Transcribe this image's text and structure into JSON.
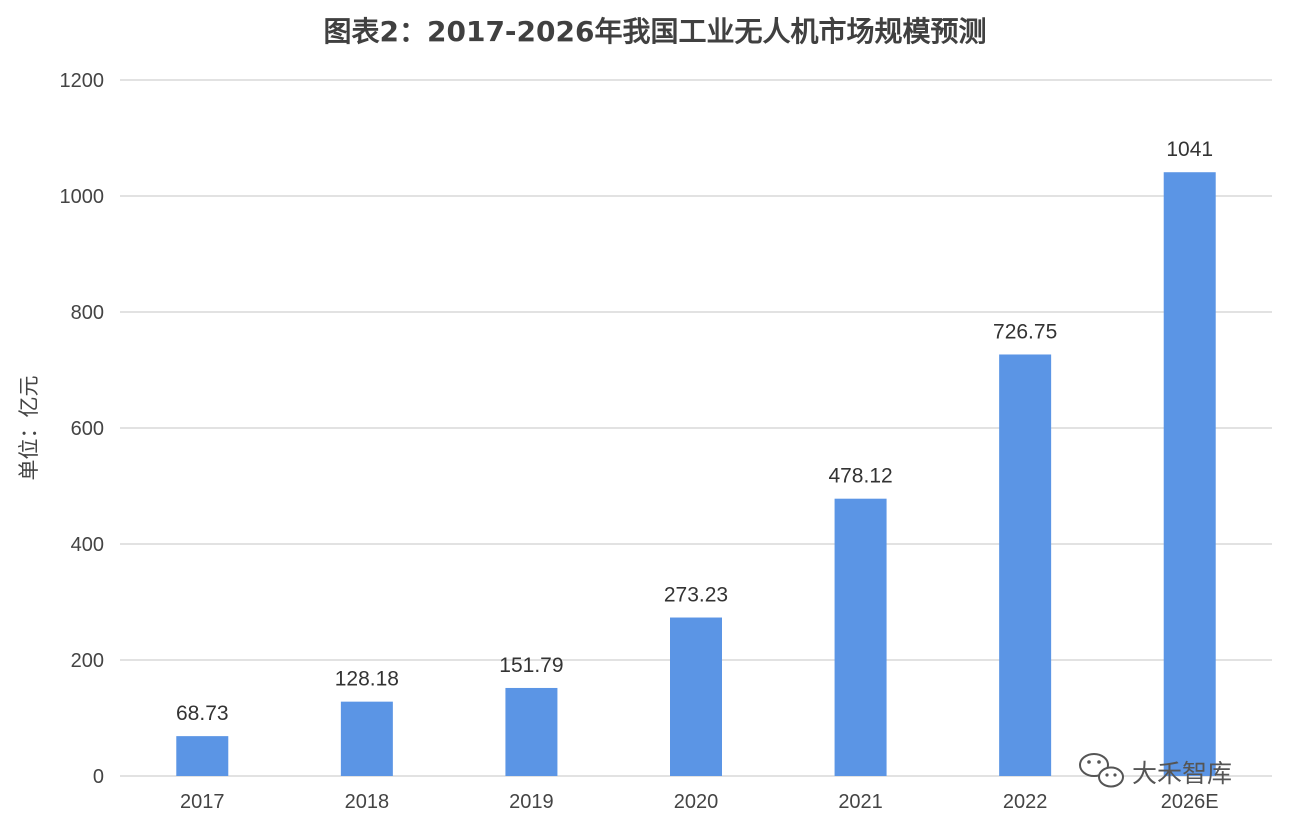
{
  "chart_data": {
    "type": "bar",
    "title": "图表2：2017-2026年我国工业无人机市场规模预测",
    "ylabel": "单位：亿元",
    "xlabel": "",
    "categories": [
      "2017",
      "2018",
      "2019",
      "2020",
      "2021",
      "2022",
      "2026E"
    ],
    "values": [
      68.73,
      128.18,
      151.79,
      273.23,
      478.12,
      726.75,
      1041
    ],
    "value_labels": [
      "68.73",
      "128.18",
      "151.79",
      "273.23",
      "478.12",
      "726.75",
      "1041"
    ],
    "ylim": [
      0,
      1200
    ],
    "yticks": [
      0,
      200,
      400,
      600,
      800,
      1000,
      1200
    ],
    "grid": true,
    "legend": "none",
    "bar_color": "#5b95e5"
  },
  "watermark": {
    "text": "大禾智库",
    "icon": "wechat-icon"
  }
}
